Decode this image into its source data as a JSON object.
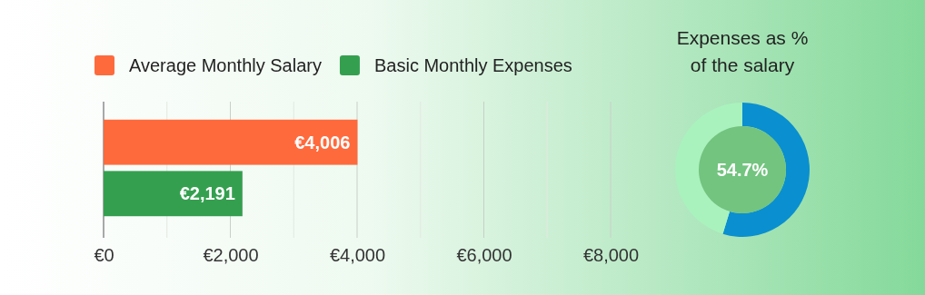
{
  "chart_data": [
    {
      "type": "bar",
      "orientation": "horizontal",
      "categories": [
        null,
        null
      ],
      "series": [
        {
          "name": "Average Monthly Salary",
          "color": "#ff6a3d",
          "values": [
            4006,
            null
          ]
        },
        {
          "name": "Basic Monthly Expenses",
          "color": "#34a04f",
          "values": [
            null,
            2191
          ]
        }
      ],
      "value_labels": [
        "€4,006",
        "€2,191"
      ],
      "xlim": [
        0,
        8000
      ],
      "xticks": [
        {
          "value": 0,
          "label": "€0"
        },
        {
          "value": 1000,
          "label": null
        },
        {
          "value": 2000,
          "label": "€2,000"
        },
        {
          "value": 3000,
          "label": null
        },
        {
          "value": 4000,
          "label": "€4,000"
        },
        {
          "value": 5000,
          "label": null
        },
        {
          "value": 6000,
          "label": "€6,000"
        },
        {
          "value": 7000,
          "label": null
        },
        {
          "value": 8000,
          "label": "€8,000"
        }
      ],
      "grid": "x",
      "legend": "top left"
    },
    {
      "type": "donut",
      "title": "Expenses as %\nof the salary",
      "categories": [
        null,
        null
      ],
      "values": [
        54.7,
        45.3
      ],
      "colors": [
        "#0a8fd0",
        "#a9f2bd"
      ],
      "annotations": [
        "54.7%"
      ]
    }
  ]
}
